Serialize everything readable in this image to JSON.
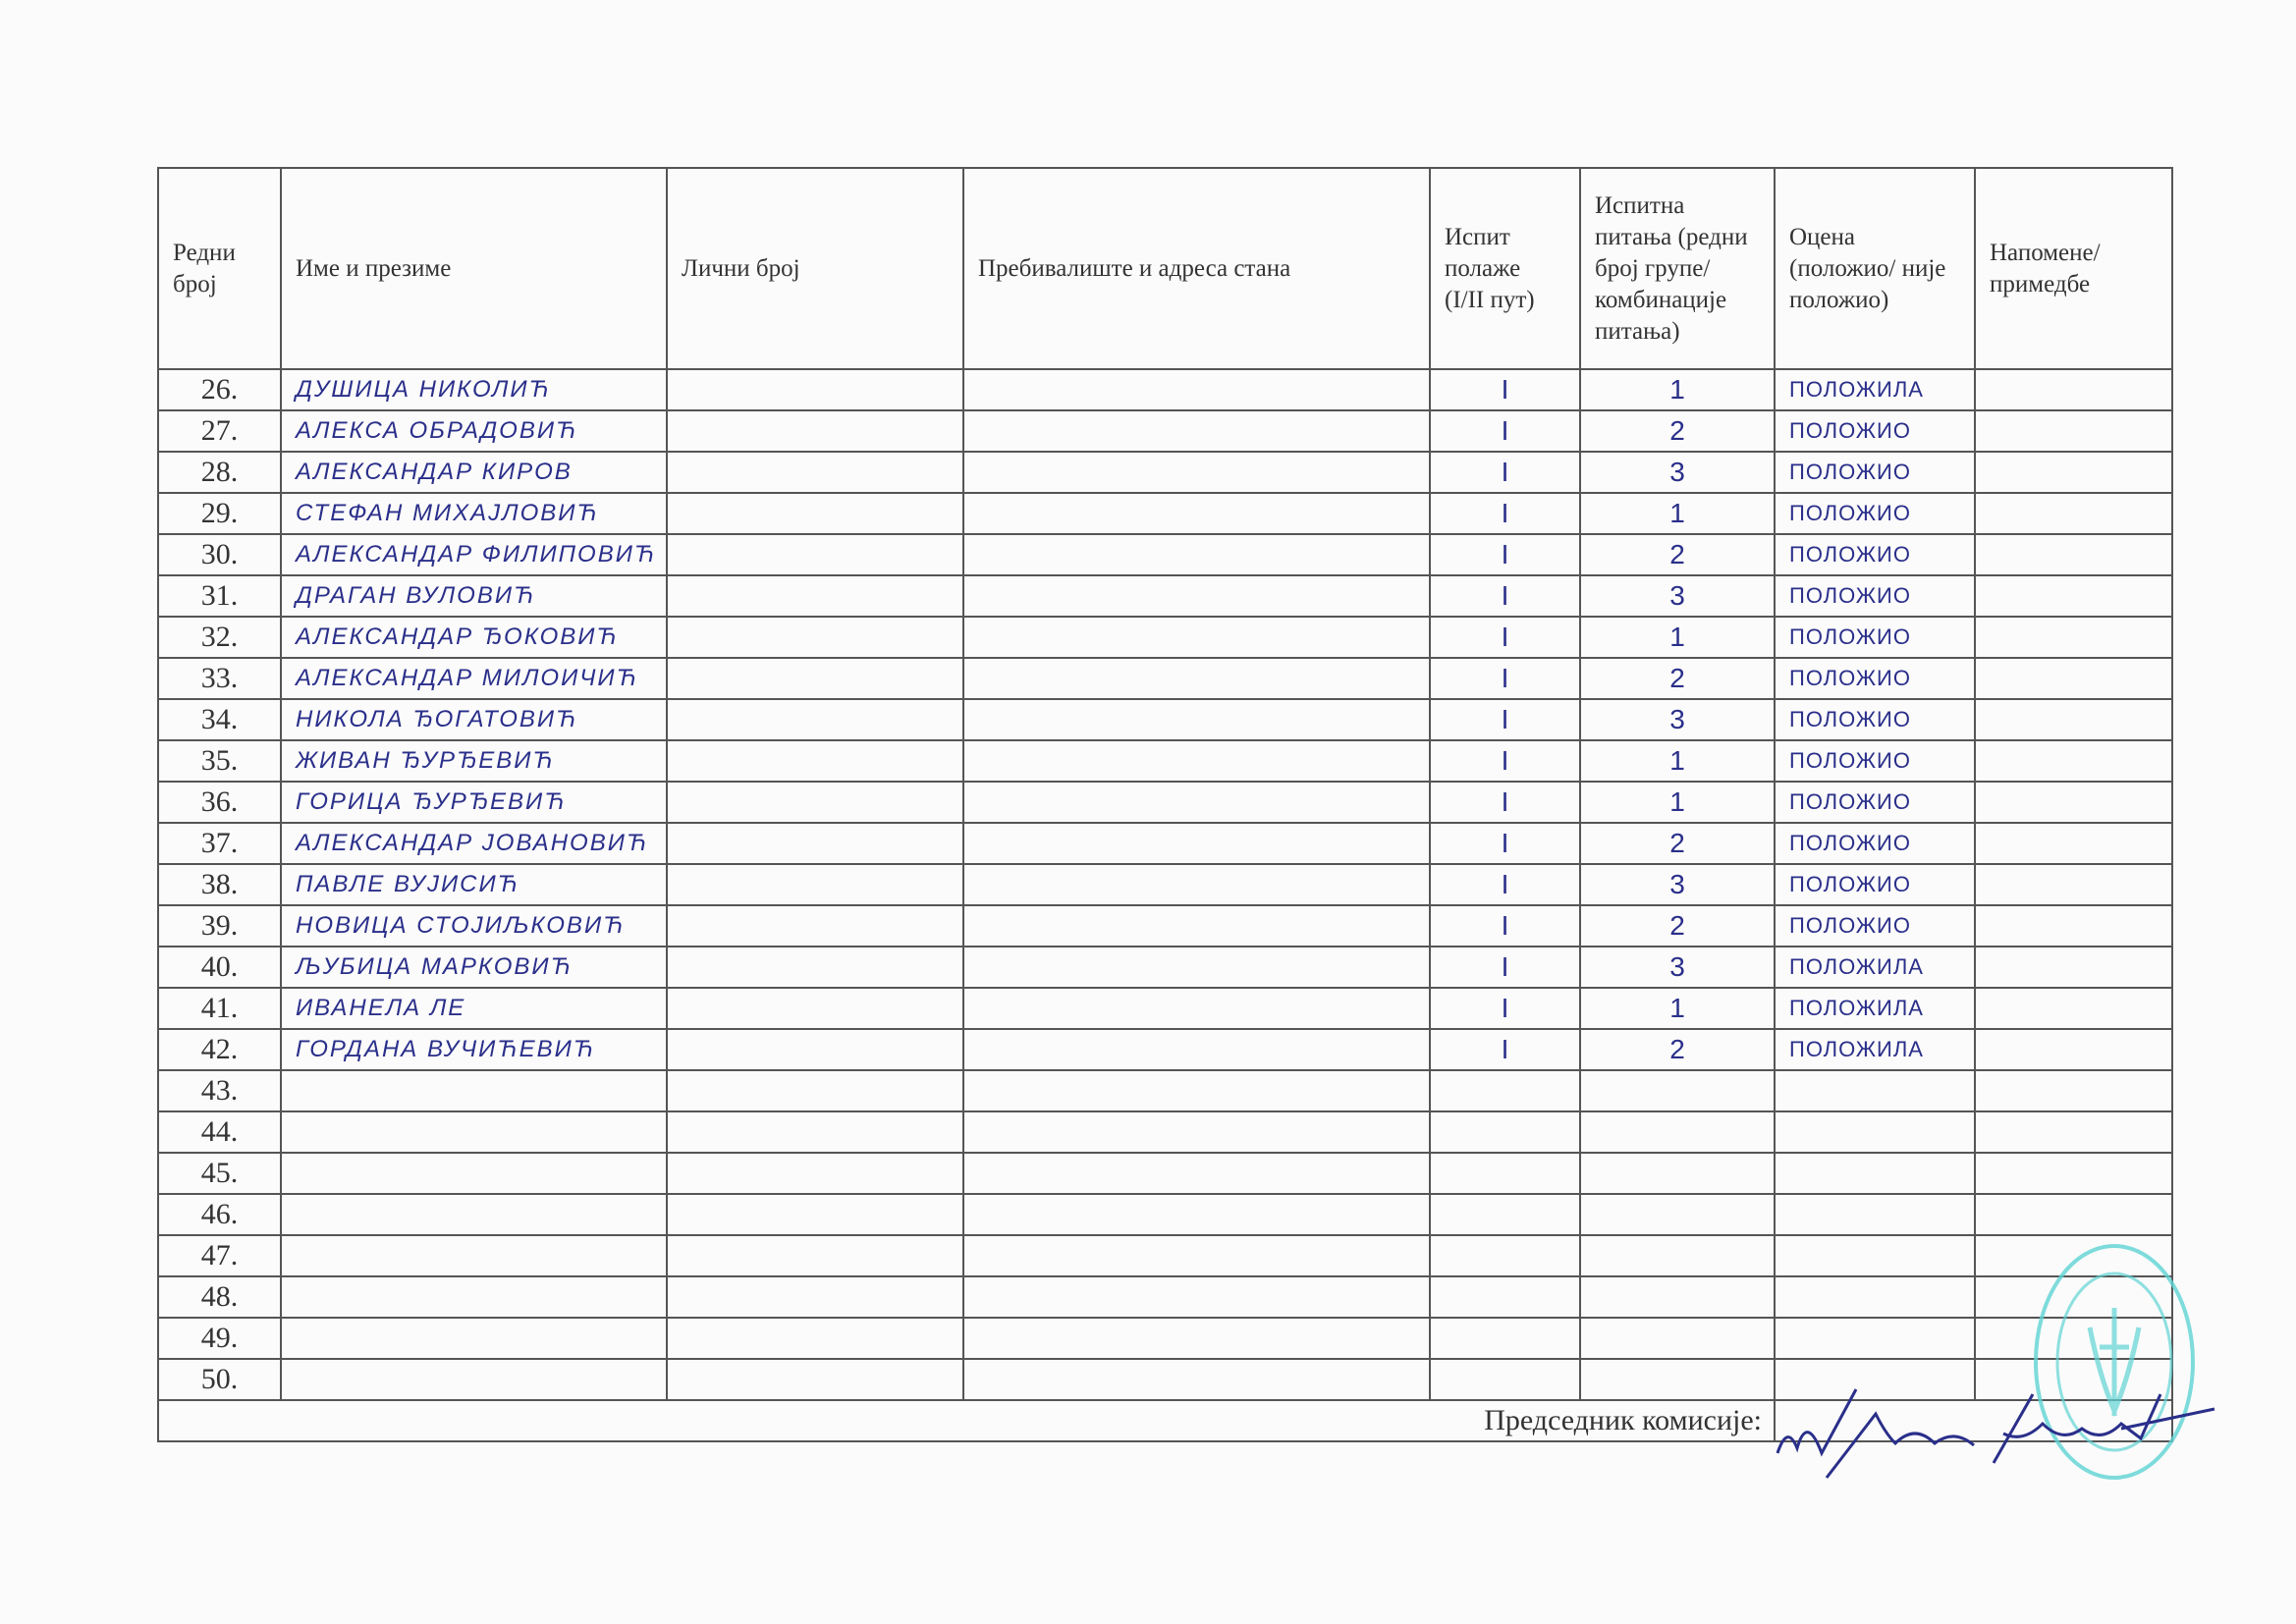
{
  "headers": {
    "number": "Редни број",
    "name": "Име и презиме",
    "personal_id": "Лични број",
    "address": "Пребивалиште и адреса стана",
    "attempt": "Испит полаже (I/II пут)",
    "questions": "Испитна питања (редни број групе/ комбинације питања)",
    "grade": "Оцена (положио/ није положио)",
    "notes": "Напомене/ примедбе"
  },
  "rows": [
    {
      "no": "26.",
      "name": "ДУШИЦА НИКОЛИЋ",
      "attempt": "I",
      "question": "1",
      "grade": "ПОЛОЖИЛА"
    },
    {
      "no": "27.",
      "name": "АЛЕКСА ОБРАДОВИЋ",
      "attempt": "I",
      "question": "2",
      "grade": "ПОЛОЖИО"
    },
    {
      "no": "28.",
      "name": "АЛЕКСАНДАР КИРОВ",
      "attempt": "I",
      "question": "3",
      "grade": "ПОЛОЖИО"
    },
    {
      "no": "29.",
      "name": "СТЕФАН МИХАЈЛОВИЋ",
      "attempt": "I",
      "question": "1",
      "grade": "ПОЛОЖИО"
    },
    {
      "no": "30.",
      "name": "АЛЕКСАНДАР ФИЛИПОВИЋ",
      "attempt": "I",
      "question": "2",
      "grade": "ПОЛОЖИО"
    },
    {
      "no": "31.",
      "name": "ДРАГАН ВУЛОВИЋ",
      "attempt": "I",
      "question": "3",
      "grade": "ПОЛОЖИО"
    },
    {
      "no": "32.",
      "name": "АЛЕКСАНДАР ЂОКОВИЋ",
      "attempt": "I",
      "question": "1",
      "grade": "ПОЛОЖИО"
    },
    {
      "no": "33.",
      "name": "АЛЕКСАНДАР МИЛОИЧИЋ",
      "attempt": "I",
      "question": "2",
      "grade": "ПОЛОЖИО"
    },
    {
      "no": "34.",
      "name": "НИКОЛА ЂОГАТОВИЋ",
      "attempt": "I",
      "question": "3",
      "grade": "ПОЛОЖИО"
    },
    {
      "no": "35.",
      "name": "ЖИВАН ЂУРЂЕВИЋ",
      "attempt": "I",
      "question": "1",
      "grade": "ПОЛОЖИО"
    },
    {
      "no": "36.",
      "name": "ГОРИЦА ЂУРЂЕВИЋ",
      "attempt": "I",
      "question": "1",
      "grade": "ПОЛОЖИО"
    },
    {
      "no": "37.",
      "name": "АЛЕКСАНДАР ЈОВАНОВИЋ",
      "attempt": "I",
      "question": "2",
      "grade": "ПОЛОЖИО"
    },
    {
      "no": "38.",
      "name": "ПАВЛЕ ВУЈИСИЋ",
      "attempt": "I",
      "question": "3",
      "grade": "ПОЛОЖИО"
    },
    {
      "no": "39.",
      "name": "НОВИЦА СТОЈИЉКОВИЋ",
      "attempt": "I",
      "question": "2",
      "grade": "ПОЛОЖИО"
    },
    {
      "no": "40.",
      "name": "ЉУБИЦА МАРКОВИЋ",
      "attempt": "I",
      "question": "3",
      "grade": "ПОЛОЖИЛА"
    },
    {
      "no": "41.",
      "name": "ИВАНЕЛА ЛЕ",
      "attempt": "I",
      "question": "1",
      "grade": "ПОЛОЖИЛА"
    },
    {
      "no": "42.",
      "name": "ГОРДАНА ВУЧИЋЕВИЋ",
      "attempt": "I",
      "question": "2",
      "grade": "ПОЛОЖИЛА"
    },
    {
      "no": "43."
    },
    {
      "no": "44."
    },
    {
      "no": "45."
    },
    {
      "no": "46."
    },
    {
      "no": "47."
    },
    {
      "no": "48."
    },
    {
      "no": "49."
    },
    {
      "no": "50."
    }
  ],
  "footer": {
    "label": "Председник комисије:"
  },
  "colors": {
    "ink": "#2a2f8a",
    "stamp": "#5fd3d3",
    "lines": "#555555"
  }
}
